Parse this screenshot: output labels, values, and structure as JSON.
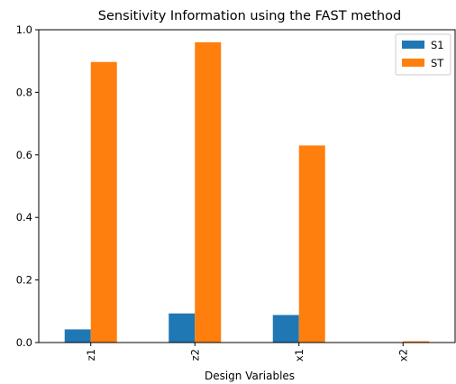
{
  "chart_data": {
    "type": "bar",
    "title": "Sensitivity Information using the FAST method",
    "xlabel": "Design Variables",
    "ylabel": "",
    "categories": [
      "z1",
      "z2",
      "x1",
      "x2"
    ],
    "series": [
      {
        "name": "S1",
        "color": "#1f77b4",
        "values": [
          0.042,
          0.093,
          0.088,
          0.0
        ]
      },
      {
        "name": "ST",
        "color": "#ff7f0e",
        "values": [
          0.897,
          0.96,
          0.63,
          0.004
        ]
      }
    ],
    "ylim": [
      0,
      1.0
    ],
    "yticks": [
      "0.0",
      "0.2",
      "0.4",
      "0.6",
      "0.8",
      "1.0"
    ],
    "grid": false,
    "legend_position": "top-right",
    "x_tick_rotation": "vertical"
  }
}
